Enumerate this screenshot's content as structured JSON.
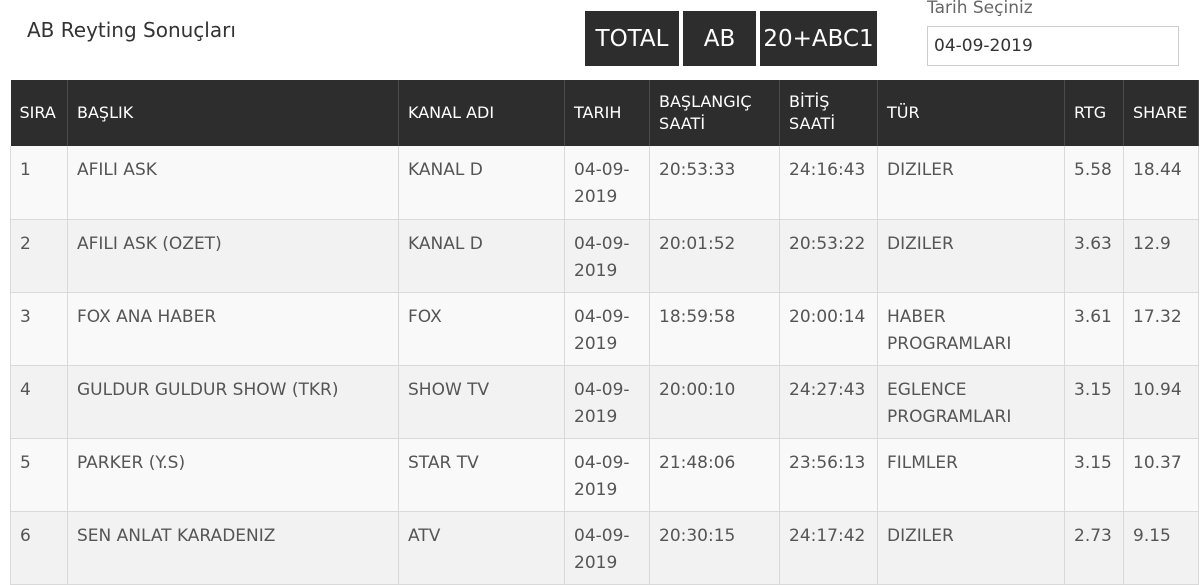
{
  "page": {
    "title": "AB Reyting Sonuçları"
  },
  "filters": {
    "buttons": [
      {
        "label": "TOTAL"
      },
      {
        "label": "AB"
      },
      {
        "label": "20+ABC1"
      }
    ],
    "date_label": "Tarih Seçiniz",
    "date_value": "04-09-2019"
  },
  "table": {
    "headers": [
      "SIRA",
      "BAŞLIK",
      "KANAL ADI",
      "TARIH",
      "BAŞLANGIÇ SAATİ",
      "BİTİŞ SAATİ",
      "TÜR",
      "RTG",
      "SHARE"
    ],
    "rows": [
      [
        "1",
        "AFILI ASK",
        "KANAL D",
        "04-09-2019",
        "20:53:33",
        "24:16:43",
        "DIZILER",
        "5.58",
        "18.44"
      ],
      [
        "2",
        "AFILI ASK (OZET)",
        "KANAL D",
        "04-09-2019",
        "20:01:52",
        "20:53:22",
        "DIZILER",
        "3.63",
        "12.9"
      ],
      [
        "3",
        "FOX ANA HABER",
        "FOX",
        "04-09-2019",
        "18:59:58",
        "20:00:14",
        "HABER PROGRAMLARI",
        "3.61",
        "17.32"
      ],
      [
        "4",
        "GULDUR GULDUR SHOW (TKR)",
        "SHOW TV",
        "04-09-2019",
        "20:00:10",
        "24:27:43",
        "EGLENCE PROGRAMLARI",
        "3.15",
        "10.94"
      ],
      [
        "5",
        "PARKER (Y.S)",
        "STAR TV",
        "04-09-2019",
        "21:48:06",
        "23:56:13",
        "FILMLER",
        "3.15",
        "10.37"
      ],
      [
        "6",
        "SEN ANLAT KARADENIZ",
        "ATV",
        "04-09-2019",
        "20:30:15",
        "24:17:42",
        "DIZILER",
        "2.73",
        "9.15"
      ]
    ]
  }
}
